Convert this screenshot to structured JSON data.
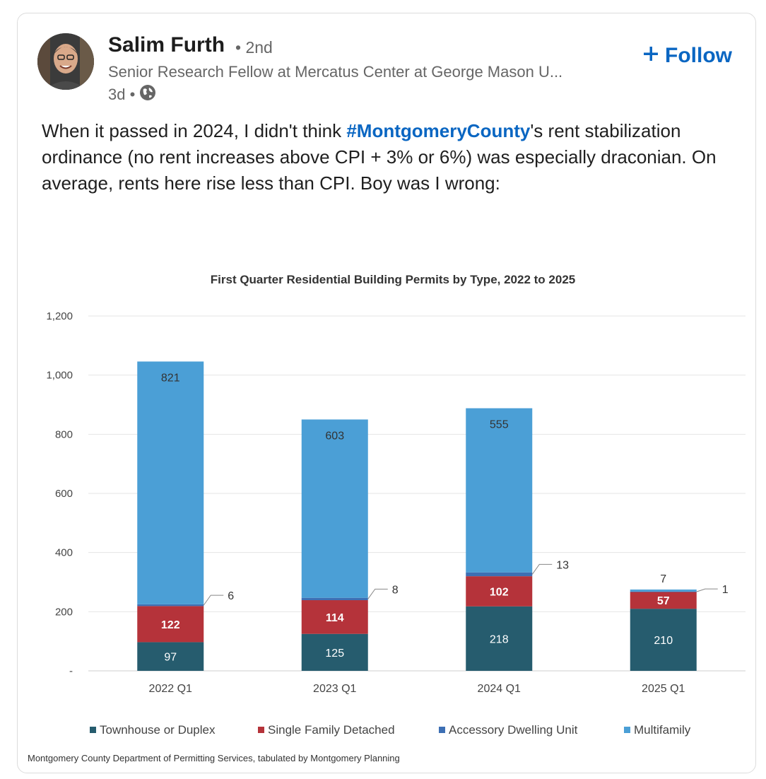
{
  "author": {
    "name": "Salim Furth",
    "degree": "• 2nd",
    "headline": "Senior Research Fellow at Mercatus Center at George Mason U...",
    "time": "3d •"
  },
  "follow_label": "Follow",
  "post": {
    "text_before": "When it passed in 2024, I didn't think ",
    "hashtag": "#MontgomeryCounty",
    "text_after": "'s rent stabilization ordinance (no rent increases above CPI + 3% or 6%) was especially draconian. On average, rents here rise less than CPI. Boy was I wrong:"
  },
  "colors": {
    "townhouse": "#265c6e",
    "single_family": "#b5333a",
    "adu": "#3d6fb4",
    "multifamily": "#4b9fd6",
    "link": "#0a66c2"
  },
  "chart_data": {
    "type": "bar",
    "stacked": true,
    "title": "First Quarter Residential Building Permits by Type, 2022 to 2025",
    "categories": [
      "2022 Q1",
      "2023 Q1",
      "2024 Q1",
      "2025 Q1"
    ],
    "series": [
      {
        "name": "Townhouse or Duplex",
        "values": [
          97,
          125,
          218,
          210
        ]
      },
      {
        "name": "Single Family Detached",
        "values": [
          122,
          114,
          102,
          57
        ]
      },
      {
        "name": "Accessory Dwelling Unit",
        "values": [
          6,
          8,
          13,
          1
        ]
      },
      {
        "name": "Multifamily",
        "values": [
          821,
          603,
          555,
          7
        ]
      }
    ],
    "ylim": [
      0,
      1200
    ],
    "yticks": [
      0,
      200,
      400,
      600,
      800,
      1000,
      1200
    ],
    "ytick_labels": [
      "-",
      "200",
      "400",
      "600",
      "800",
      "1,000",
      "1,200"
    ],
    "grid": true,
    "legend_position": "bottom",
    "source": "Montgomery County Department of Permitting Services, tabulated by Montgomery Planning"
  }
}
